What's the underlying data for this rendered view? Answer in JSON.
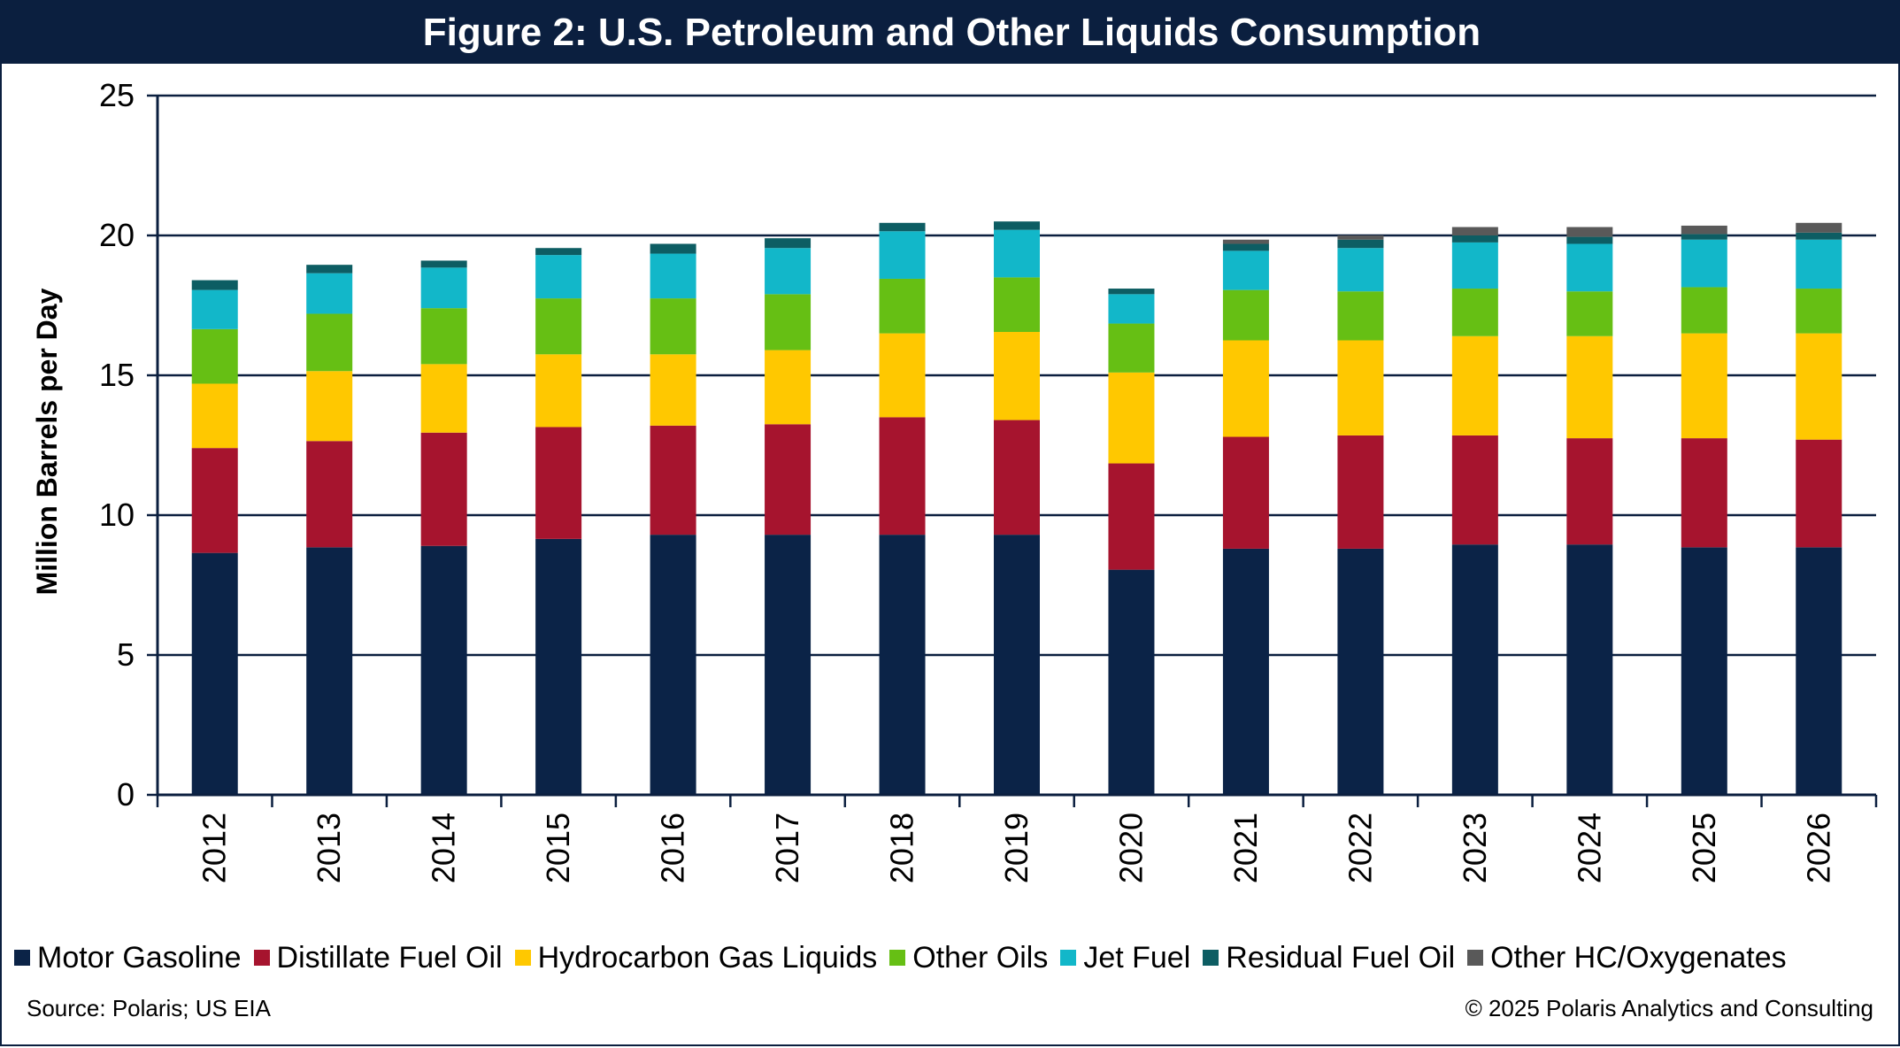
{
  "chart_data": {
    "type": "bar",
    "stacked": true,
    "title": "Figure 2: U.S. Petroleum and Other Liquids Consumption",
    "ylabel": "Million Barrels per Day",
    "xlabel": "",
    "ylim": [
      0,
      25
    ],
    "yticks": [
      0,
      5,
      10,
      15,
      20,
      25
    ],
    "grid": true,
    "legend_position": "bottom",
    "categories": [
      "2012",
      "2013",
      "2014",
      "2015",
      "2016",
      "2017",
      "2018",
      "2019",
      "2020",
      "2021",
      "2022",
      "2023",
      "2024",
      "2025",
      "2026"
    ],
    "series": [
      {
        "name": "Motor Gasoline",
        "color": "#0b2347",
        "values": [
          8.65,
          8.85,
          8.9,
          9.15,
          9.3,
          9.3,
          9.3,
          9.3,
          8.05,
          8.8,
          8.8,
          8.95,
          8.95,
          8.85,
          8.85
        ]
      },
      {
        "name": "Distillate Fuel Oil",
        "color": "#a6142e",
        "values": [
          3.75,
          3.8,
          4.05,
          4.0,
          3.9,
          3.95,
          4.2,
          4.1,
          3.8,
          4.0,
          4.05,
          3.9,
          3.8,
          3.9,
          3.85
        ]
      },
      {
        "name": "Hydrocarbon Gas Liquids",
        "color": "#ffc800",
        "values": [
          2.3,
          2.5,
          2.45,
          2.6,
          2.55,
          2.65,
          3.0,
          3.15,
          3.25,
          3.45,
          3.4,
          3.55,
          3.65,
          3.75,
          3.8
        ]
      },
      {
        "name": "Other Oils",
        "color": "#66bf14",
        "values": [
          1.95,
          2.05,
          2.0,
          2.0,
          2.0,
          2.0,
          1.95,
          1.95,
          1.75,
          1.8,
          1.75,
          1.7,
          1.6,
          1.65,
          1.6
        ]
      },
      {
        "name": "Jet Fuel",
        "color": "#12b7c9",
        "values": [
          1.4,
          1.45,
          1.45,
          1.55,
          1.6,
          1.65,
          1.7,
          1.7,
          1.05,
          1.4,
          1.55,
          1.65,
          1.7,
          1.7,
          1.75
        ]
      },
      {
        "name": "Residual Fuel Oil",
        "color": "#0d5d63",
        "values": [
          0.35,
          0.3,
          0.25,
          0.25,
          0.35,
          0.35,
          0.3,
          0.3,
          0.2,
          0.25,
          0.3,
          0.25,
          0.25,
          0.2,
          0.25
        ]
      },
      {
        "name": "Other HC/Oxygenates",
        "color": "#595959",
        "values": [
          0.0,
          0.0,
          0.0,
          0.0,
          0.0,
          0.0,
          0.0,
          0.0,
          0.0,
          0.15,
          0.15,
          0.3,
          0.35,
          0.3,
          0.35
        ]
      }
    ]
  },
  "footer": {
    "source": "Source: Polaris; US EIA",
    "copyright": "© 2025 Polaris Analytics and Consulting"
  }
}
